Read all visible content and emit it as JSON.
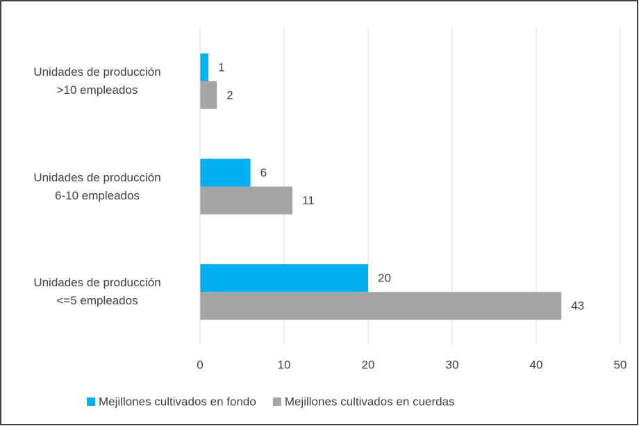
{
  "chart_data": {
    "type": "bar",
    "orientation": "horizontal",
    "categories": [
      "Unidades de producción\n>10 empleados",
      "Unidades de producción\n6-10 empleados",
      "Unidades de producción\n<=5 empleados"
    ],
    "series": [
      {
        "name": "Mejillones cultivados en fondo",
        "color": "#00b0f0",
        "values": [
          1,
          6,
          20
        ]
      },
      {
        "name": "Mejillones cultivados en cuerdas",
        "color": "#a5a5a5",
        "values": [
          2,
          11,
          43
        ]
      }
    ],
    "xlim": [
      0,
      50
    ],
    "xticks": [
      0,
      10,
      20,
      30,
      40,
      50
    ],
    "grid": true,
    "legend": "bottom"
  }
}
